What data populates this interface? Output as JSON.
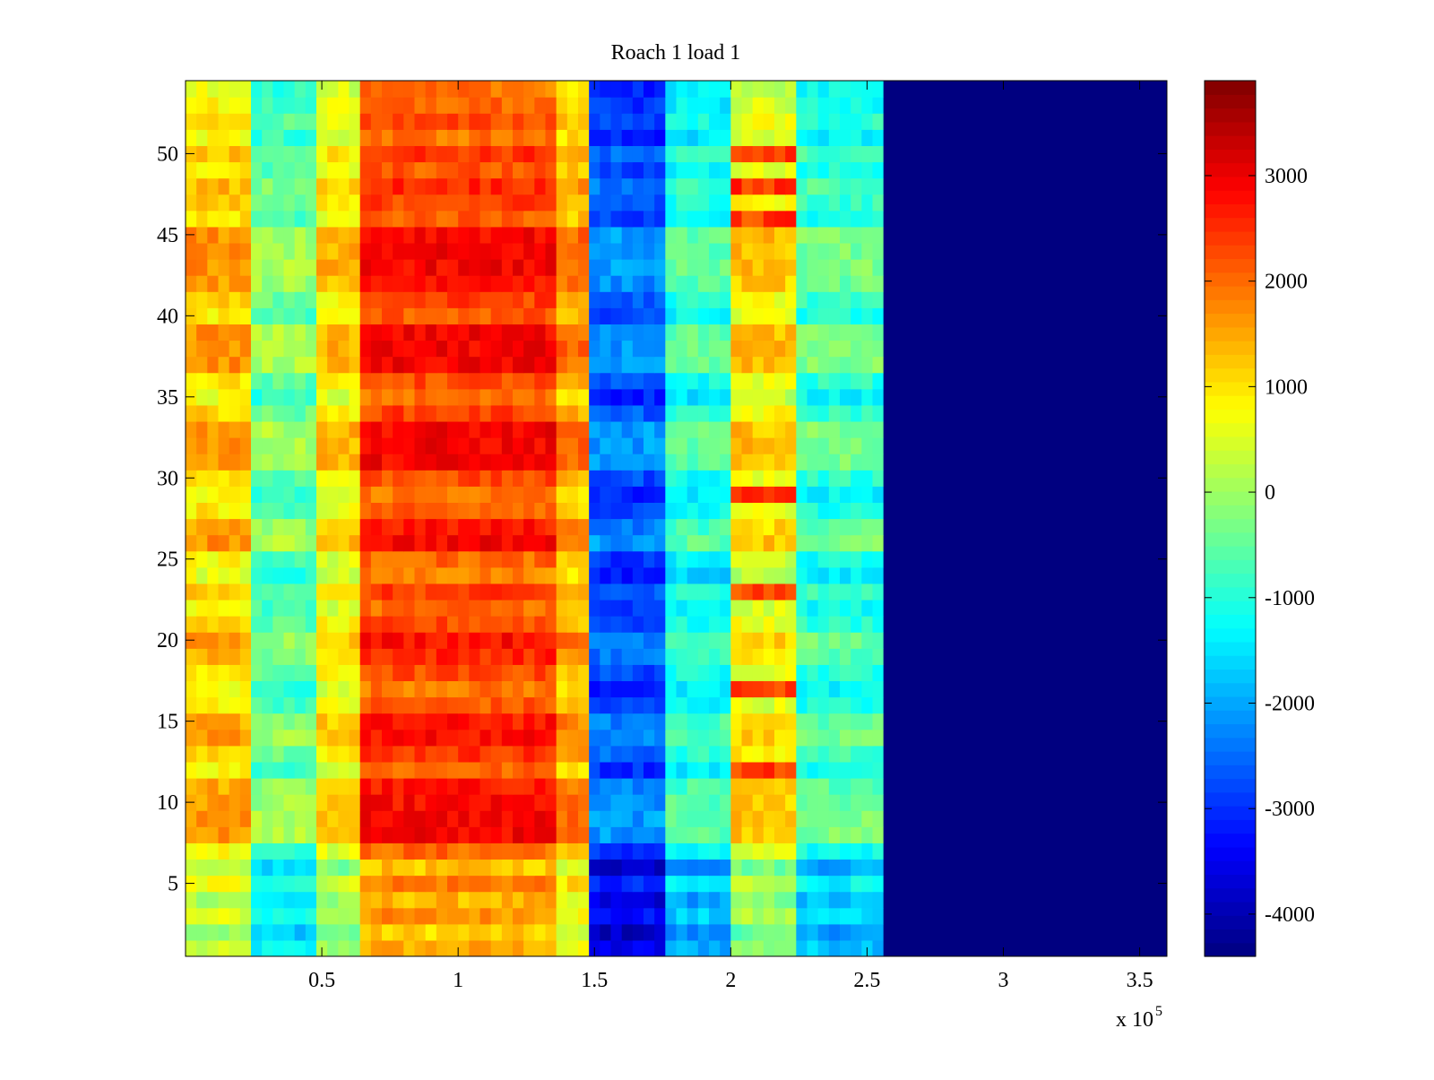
{
  "chart_data": {
    "type": "heatmap",
    "title": "Roach 1 load 1",
    "xlabel": "",
    "ylabel": "",
    "x_multiplier_label": "x 10",
    "x_multiplier_exponent": "5",
    "xlim": [
      0,
      3.6
    ],
    "ylim": [
      0.5,
      54.5
    ],
    "xticks": [
      0.5,
      1,
      1.5,
      2,
      2.5,
      3,
      3.5
    ],
    "xtick_labels": [
      "0.5",
      "1",
      "1.5",
      "2",
      "2.5",
      "3",
      "3.5"
    ],
    "yticks": [
      5,
      10,
      15,
      20,
      25,
      30,
      35,
      40,
      45,
      50
    ],
    "ytick_labels": [
      "5",
      "10",
      "15",
      "20",
      "25",
      "30",
      "35",
      "40",
      "45",
      "50"
    ],
    "colormap": "jet",
    "clim": [
      -4400,
      3900
    ],
    "colorbar_ticks": [
      3000,
      2000,
      1000,
      0,
      -1000,
      -2000,
      -3000,
      -4000
    ],
    "colorbar_tick_labels": [
      "3000",
      "2000",
      "1000",
      "0",
      "-1000",
      "-2000",
      "-3000",
      "-4000"
    ],
    "rows": 54,
    "x_regions": [
      0,
      0.23,
      0.5,
      0.65,
      1.35,
      1.5,
      1.75,
      2.0,
      2.25,
      2.55,
      3.6
    ],
    "region_base_values": [
      600,
      -1000,
      300,
      1800,
      900,
      -3200,
      -1600,
      200,
      -1400,
      -4400
    ],
    "row_intensity": [
      -0.3,
      -0.6,
      -0.1,
      -0.4,
      0.1,
      -0.5,
      0.2,
      1.0,
      1.0,
      0.9,
      0.8,
      0.2,
      0.6,
      0.9,
      0.8,
      0.3,
      0.1,
      0.4,
      0.7,
      0.9,
      0.4,
      0.2,
      0.5,
      0.0,
      0.2,
      1.0,
      0.8,
      0.3,
      0.1,
      0.4,
      1.0,
      1.0,
      1.0,
      0.5,
      0.1,
      0.4,
      1.0,
      1.0,
      1.0,
      0.3,
      0.5,
      0.9,
      1.0,
      1.0,
      1.0,
      0.3,
      0.5,
      0.7,
      0.3,
      0.6,
      0.1,
      0.4,
      0.2,
      0.1
    ],
    "hot_spots": [
      {
        "x_start": 2.0,
        "x_end": 2.25,
        "rows": [
          12,
          17,
          23,
          29,
          46,
          48,
          50
        ],
        "value": 2400
      }
    ]
  },
  "colors": {
    "axes_border": "#000000",
    "background": "#ffffff"
  }
}
